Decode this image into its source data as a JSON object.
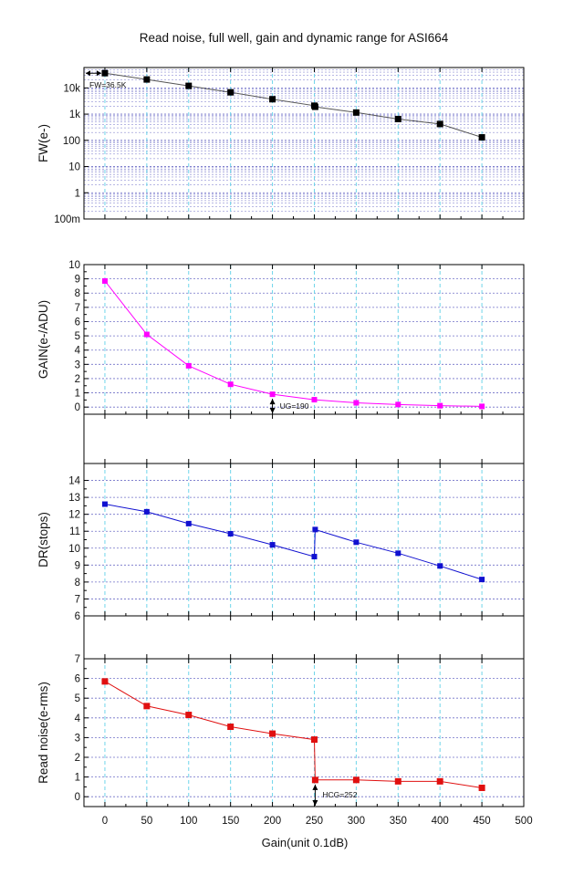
{
  "title": "Read noise, full well, gain and dynamic range for ASI664",
  "colors": {
    "fw": "#000000",
    "gain": "#ff00ff",
    "dr": "#1010d0",
    "rn": "#e01010",
    "vgrid": "#6fd6ea",
    "hgrid": "#7070c8"
  },
  "chart_data": [
    {
      "id": "fw",
      "type": "line",
      "scale": "log",
      "ylabel": "FW(e-)",
      "xlim": [
        -25,
        500
      ],
      "ylim": [
        0.1,
        60000
      ],
      "yticks": [
        0.1,
        1,
        10,
        100,
        1000,
        10000
      ],
      "yticklabels": [
        "100m",
        "1",
        "10",
        "100",
        "1k",
        "10k"
      ],
      "x": [
        0,
        50,
        100,
        150,
        200,
        250,
        251,
        300,
        350,
        400,
        450
      ],
      "values": [
        36500,
        21000,
        12000,
        6800,
        3700,
        2100,
        1900,
        1150,
        650,
        420,
        130
      ],
      "annotation": "FW=36.5K"
    },
    {
      "id": "gain",
      "type": "line",
      "ylabel": "GAIN(e-/ADU)",
      "xlim": [
        -25,
        500
      ],
      "ylim": [
        -0.5,
        10
      ],
      "yticks": [
        0,
        1,
        2,
        3,
        4,
        5,
        6,
        7,
        8,
        9,
        10
      ],
      "yticklabels": [
        "0",
        "1",
        "2",
        "3",
        "4",
        "5",
        "6",
        "7",
        "8",
        "9",
        "10"
      ],
      "x": [
        0,
        50,
        100,
        150,
        200,
        250,
        300,
        350,
        400,
        450
      ],
      "values": [
        8.85,
        5.1,
        2.9,
        1.6,
        0.9,
        0.52,
        0.3,
        0.18,
        0.1,
        0.05
      ],
      "annotation": "UG=190"
    },
    {
      "id": "dr",
      "type": "line",
      "ylabel": "DR(stops)",
      "xlim": [
        -25,
        500
      ],
      "ylim": [
        6,
        15
      ],
      "yticks": [
        6,
        7,
        8,
        9,
        10,
        11,
        12,
        13,
        14
      ],
      "yticklabels": [
        "6",
        "7",
        "8",
        "9",
        "10",
        "11",
        "12",
        "13",
        "14"
      ],
      "x": [
        0,
        50,
        100,
        150,
        200,
        250,
        251,
        300,
        350,
        400,
        450
      ],
      "values": [
        12.6,
        12.15,
        11.45,
        10.85,
        10.2,
        9.5,
        11.1,
        10.35,
        9.7,
        8.95,
        8.15
      ]
    },
    {
      "id": "rn",
      "type": "line",
      "ylabel": "Read noise(e-rms)",
      "xlabel": "Gain(unit 0.1dB)",
      "xlim": [
        -25,
        500
      ],
      "ylim": [
        -0.5,
        7
      ],
      "yticks": [
        0,
        1,
        2,
        3,
        4,
        5,
        6,
        7
      ],
      "yticklabels": [
        "0",
        "1",
        "2",
        "3",
        "4",
        "5",
        "6",
        "7"
      ],
      "x": [
        0,
        50,
        100,
        150,
        200,
        250,
        251,
        300,
        350,
        400,
        450
      ],
      "values": [
        5.85,
        4.6,
        4.15,
        3.55,
        3.2,
        2.9,
        0.85,
        0.85,
        0.78,
        0.78,
        0.45
      ],
      "xticks": [
        0,
        50,
        100,
        150,
        200,
        250,
        300,
        350,
        400,
        450,
        500
      ],
      "xticklabels": [
        "0",
        "50",
        "100",
        "150",
        "200",
        "250",
        "300",
        "350",
        "400",
        "450",
        "500"
      ],
      "annotation": "HCG=252"
    }
  ]
}
